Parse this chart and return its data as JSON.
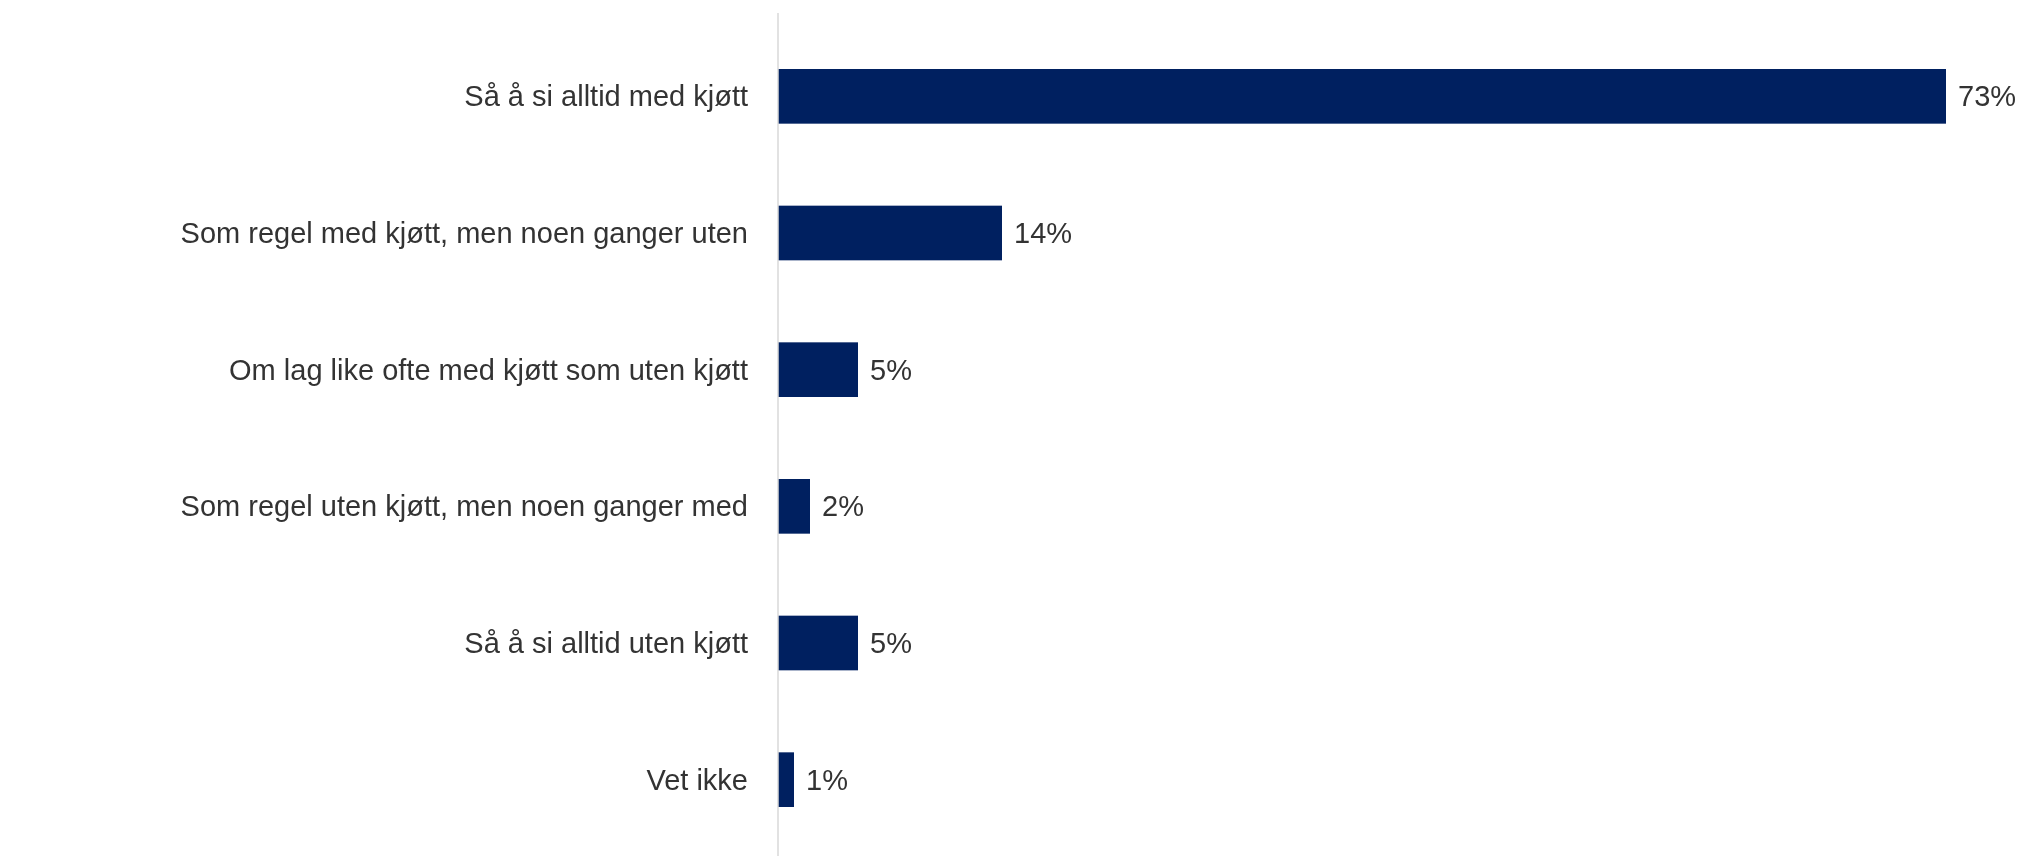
{
  "chart_data": {
    "type": "bar",
    "orientation": "horizontal",
    "categories": [
      "Så å si alltid med kjøtt",
      "Som regel med kjøtt, men noen ganger uten",
      "Om lag like ofte med kjøtt som uten kjøtt",
      "Som regel uten kjøtt, men noen ganger med",
      "Så å si alltid uten kjøtt",
      "Vet ikke"
    ],
    "values": [
      73,
      14,
      5,
      2,
      5,
      1
    ],
    "value_labels": [
      "73%",
      "14%",
      "5%",
      "2%",
      "5%",
      "1%"
    ],
    "color": "#002060"
  }
}
